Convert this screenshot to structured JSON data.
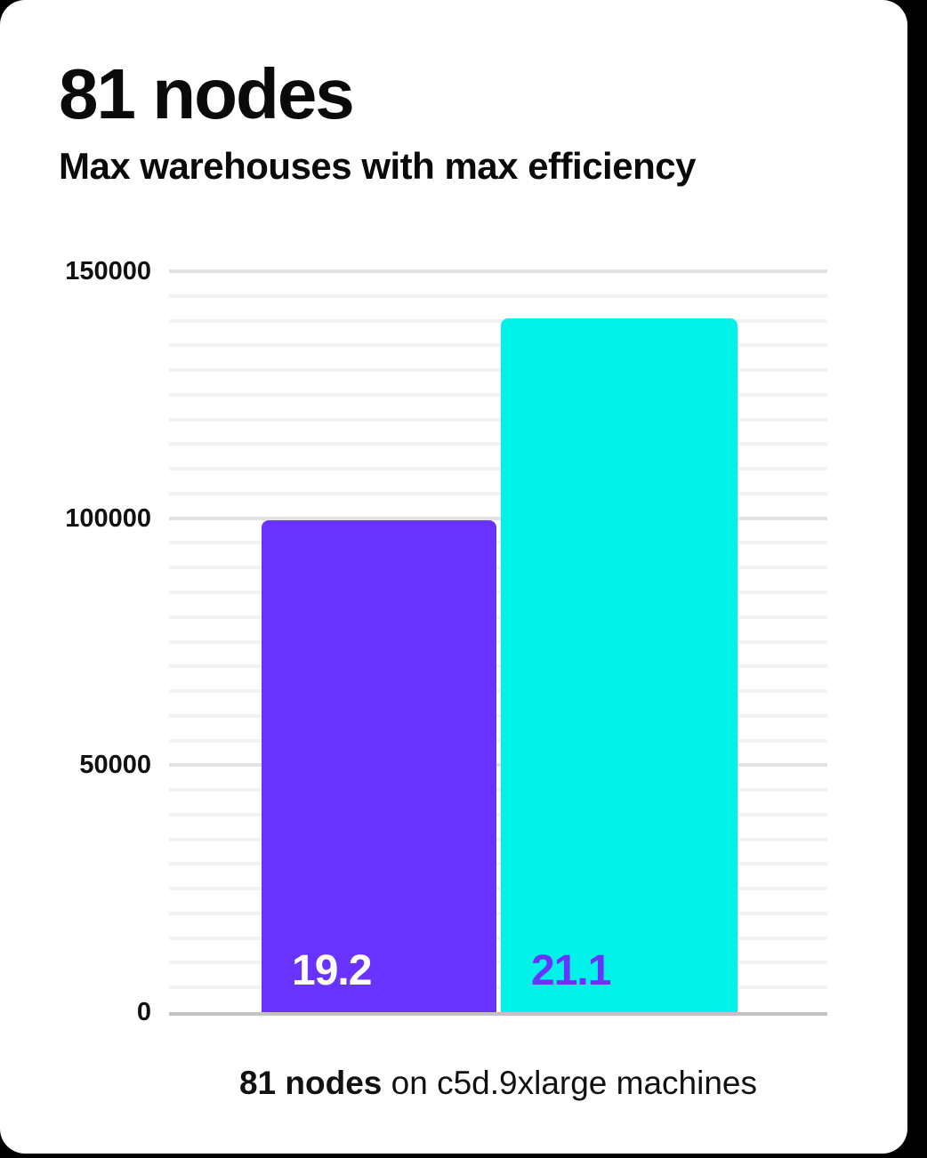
{
  "page": {
    "background": "#000000",
    "card_background": "#ffffff"
  },
  "header": {
    "title": "81 nodes",
    "subtitle": "Max warehouses with max efficiency"
  },
  "caption": {
    "bold": "81 nodes",
    "rest": " on c5d.9xlarge machines"
  },
  "chart_data": {
    "type": "bar",
    "title": "81 nodes",
    "subtitle": "Max warehouses with max efficiency",
    "categories": [
      "19.2",
      "21.1"
    ],
    "values": [
      99500,
      140400
    ],
    "bar_labels": [
      "19.2",
      "21.1"
    ],
    "bar_colors": [
      "#6933ff",
      "#00f2e8"
    ],
    "bar_label_colors": [
      "#ffffff",
      "#6933ff"
    ],
    "ylim": [
      0,
      150000
    ],
    "yticks": [
      {
        "value": 0,
        "label": "0"
      },
      {
        "value": 50000,
        "label": "50000"
      },
      {
        "value": 100000,
        "label": "100000"
      },
      {
        "value": 150000,
        "label": "150000"
      }
    ],
    "gridline_step": 5000,
    "major_gridline_step": 50000,
    "grid": true,
    "legend_position": "none",
    "xlabel": "",
    "ylabel": "",
    "caption": "81 nodes on c5d.9xlarge machines"
  },
  "colors": {
    "accent_purple": "#6933ff",
    "accent_cyan": "#00f2e8",
    "grid_minor": "#f2f2f2",
    "grid_major": "#e3e3e3",
    "axis_line": "#c2c2c2",
    "text": "#0a0a0a"
  }
}
